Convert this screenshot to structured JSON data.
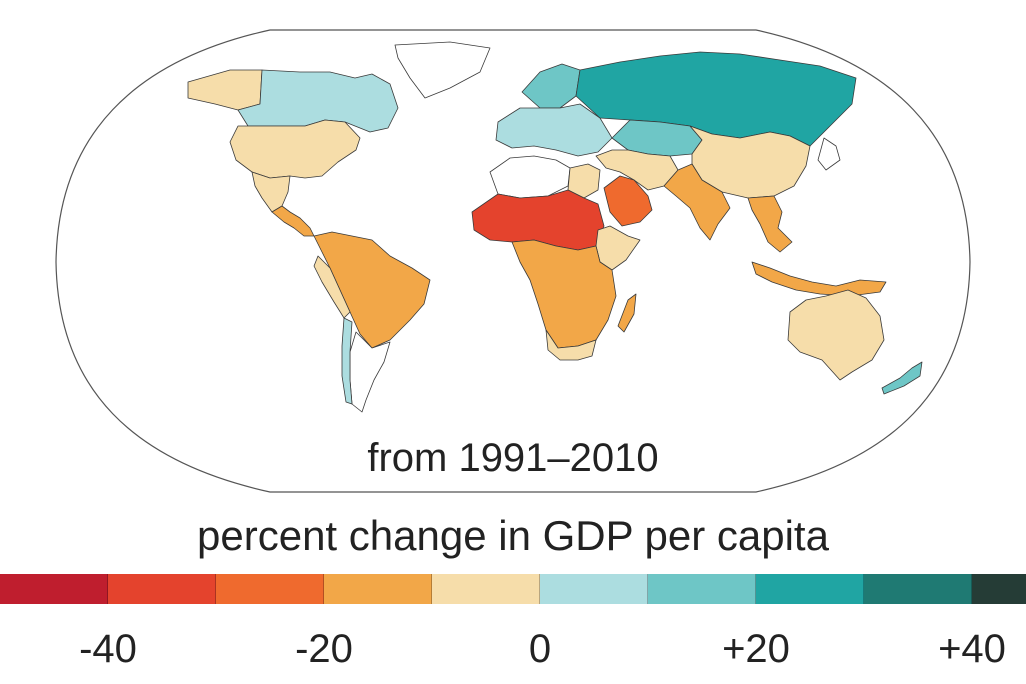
{
  "map": {
    "projection": "robinson",
    "caption": "from 1991–2010"
  },
  "legend": {
    "title": "percent change in GDP per capita",
    "bins": [
      {
        "color": "#bf1e2e"
      },
      {
        "color": "#e4432d"
      },
      {
        "color": "#ef6a2e"
      },
      {
        "color": "#f2a748"
      },
      {
        "color": "#f6ddaa"
      },
      {
        "color": "#acdde0"
      },
      {
        "color": "#6ec6c6"
      },
      {
        "color": "#20a5a3"
      },
      {
        "color": "#1f7a73"
      },
      {
        "color": "#253c36"
      }
    ],
    "ticks": [
      {
        "label": "-40",
        "value": -40
      },
      {
        "label": "-20",
        "value": -20
      },
      {
        "label": "0",
        "value": 0
      },
      {
        "label": "+20",
        "value": 20
      },
      {
        "label": "+40",
        "value": 40
      }
    ],
    "range": [
      -50,
      45
    ]
  },
  "regions": [
    {
      "name": "alaska",
      "color": "#f6ddaa"
    },
    {
      "name": "canada",
      "color": "#acdde0"
    },
    {
      "name": "greenland",
      "color": "#ffffff"
    },
    {
      "name": "united-states",
      "color": "#f6ddaa"
    },
    {
      "name": "mexico",
      "color": "#f6ddaa"
    },
    {
      "name": "central-america",
      "color": "#f2a748"
    },
    {
      "name": "south-america-north",
      "color": "#f2a748"
    },
    {
      "name": "south-america-west",
      "color": "#f6ddaa"
    },
    {
      "name": "chile",
      "color": "#acdde0"
    },
    {
      "name": "argentina",
      "color": "#ffffff"
    },
    {
      "name": "northern-europe",
      "color": "#6ec6c6"
    },
    {
      "name": "europe",
      "color": "#acdde0"
    },
    {
      "name": "russia",
      "color": "#20a5a3"
    },
    {
      "name": "central-asia",
      "color": "#6ec6c6"
    },
    {
      "name": "north-africa-west",
      "color": "#ffffff"
    },
    {
      "name": "north-africa-east",
      "color": "#f6ddaa"
    },
    {
      "name": "sahel",
      "color": "#e4432d"
    },
    {
      "name": "arabian-peninsula",
      "color": "#ef6a2e"
    },
    {
      "name": "middle-east",
      "color": "#f6ddaa"
    },
    {
      "name": "horn-of-africa",
      "color": "#f6ddaa"
    },
    {
      "name": "central-africa",
      "color": "#f2a748"
    },
    {
      "name": "southern-africa",
      "color": "#f6ddaa"
    },
    {
      "name": "madagascar",
      "color": "#f2a748"
    },
    {
      "name": "south-asia",
      "color": "#f2a748"
    },
    {
      "name": "china",
      "color": "#f6ddaa"
    },
    {
      "name": "japan",
      "color": "#ffffff"
    },
    {
      "name": "southeast-asia",
      "color": "#f2a748"
    },
    {
      "name": "indonesia",
      "color": "#f2a748"
    },
    {
      "name": "australia",
      "color": "#f6ddaa"
    },
    {
      "name": "new-zealand",
      "color": "#6ec6c6"
    }
  ]
}
